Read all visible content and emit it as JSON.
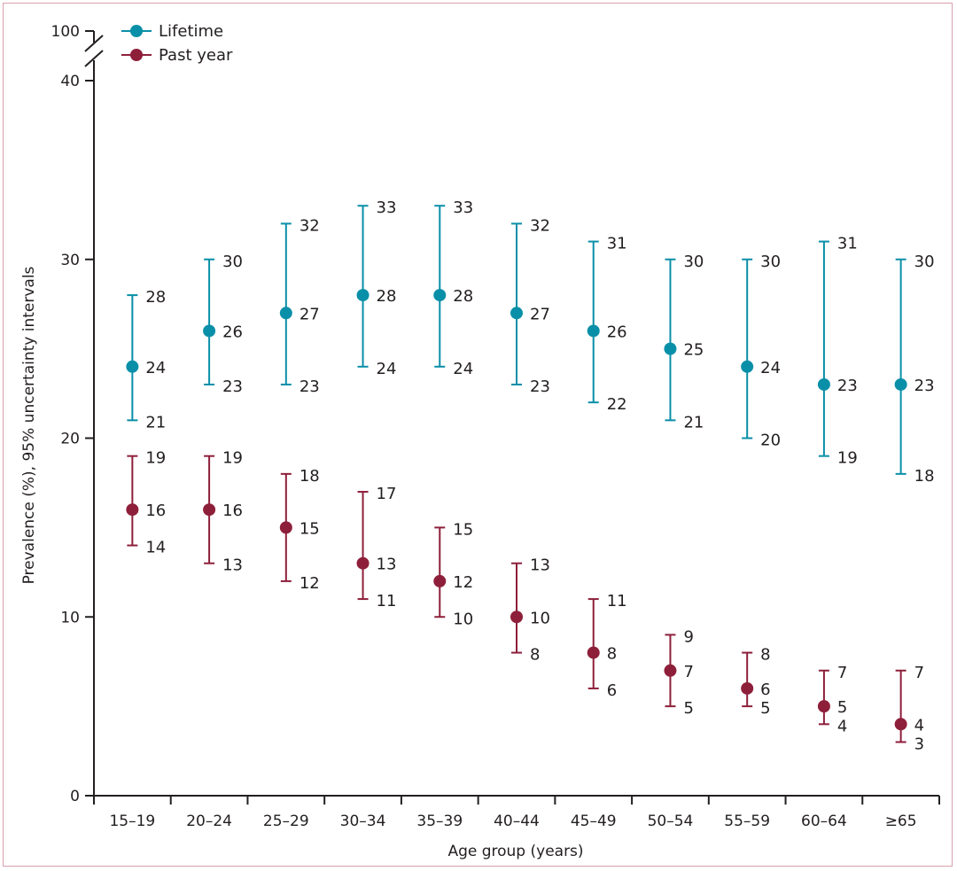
{
  "chart_data": {
    "type": "scatter",
    "subtype": "point-with-error-bars",
    "title": "",
    "xlabel": "Age group (years)",
    "ylabel": "Prevalence (%), 95% uncertainty intervals",
    "categories": [
      "15–19",
      "20–24",
      "25–29",
      "30–34",
      "35–39",
      "40–44",
      "45–49",
      "50–54",
      "55–59",
      "60–64",
      "≥65"
    ],
    "ylim": [
      0,
      40
    ],
    "y_ticks": [
      0,
      10,
      20,
      30,
      40
    ],
    "y_tick_labels": [
      "0",
      "10",
      "20",
      "30",
      "40"
    ],
    "y_axis_break": {
      "top_label": "100",
      "break_between": [
        40,
        100
      ]
    },
    "grid": false,
    "legend_position": "top-left",
    "series": [
      {
        "name": "Lifetime",
        "color": "#0a8fa8",
        "values": [
          24,
          26,
          27,
          28,
          28,
          27,
          26,
          25,
          24,
          23,
          23
        ],
        "lower": [
          21,
          23,
          23,
          24,
          24,
          23,
          22,
          21,
          20,
          19,
          18
        ],
        "upper": [
          28,
          30,
          32,
          33,
          33,
          32,
          31,
          30,
          30,
          31,
          30
        ]
      },
      {
        "name": "Past year",
        "color": "#8e1f3a",
        "values": [
          16,
          16,
          15,
          13,
          12,
          10,
          8,
          7,
          6,
          5,
          4
        ],
        "lower": [
          14,
          13,
          12,
          11,
          10,
          8,
          6,
          5,
          5,
          4,
          3
        ],
        "upper": [
          19,
          19,
          18,
          17,
          15,
          13,
          11,
          9,
          8,
          7,
          7
        ]
      }
    ]
  }
}
